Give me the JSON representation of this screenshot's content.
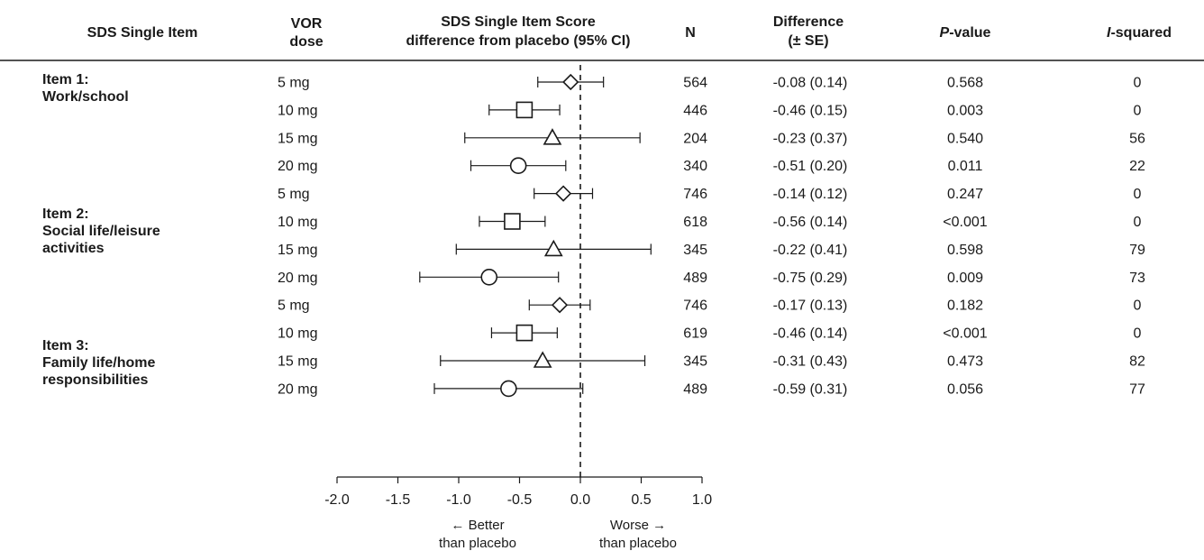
{
  "headers": {
    "item": "SDS Single Item",
    "dose_line1": "VOR",
    "dose_line2": "dose",
    "plot_line1": "SDS Single Item Score",
    "plot_line2": "difference from placebo (95% CI)",
    "n": "N",
    "diff_line1": "Difference",
    "diff_line2": "(± SE)",
    "p_italic": "P",
    "p_rest": "-value",
    "i_italic": "I",
    "i_rest": "-squared"
  },
  "groups": [
    {
      "line1": "Item 1:",
      "line2": "Work/school",
      "line3": ""
    },
    {
      "line1": "Item 2:",
      "line2": "Social life/leisure",
      "line3": "activities"
    },
    {
      "line1": "Item 3:",
      "line2": "Family life/home",
      "line3": "responsibilities"
    }
  ],
  "rows": [
    {
      "dose": "5 mg",
      "n": "564",
      "diff": "-0.08 (0.14)",
      "p": "0.568",
      "i2": "0"
    },
    {
      "dose": "10 mg",
      "n": "446",
      "diff": "-0.46 (0.15)",
      "p": "0.003",
      "i2": "0"
    },
    {
      "dose": "15 mg",
      "n": "204",
      "diff": "-0.23 (0.37)",
      "p": "0.540",
      "i2": "56"
    },
    {
      "dose": "20 mg",
      "n": "340",
      "diff": "-0.51 (0.20)",
      "p": "0.011",
      "i2": "22"
    },
    {
      "dose": "5 mg",
      "n": "746",
      "diff": "-0.14 (0.12)",
      "p": "0.247",
      "i2": "0"
    },
    {
      "dose": "10 mg",
      "n": "618",
      "diff": "-0.56 (0.14)",
      "p": "<0.001",
      "i2": "0"
    },
    {
      "dose": "15 mg",
      "n": "345",
      "diff": "-0.22 (0.41)",
      "p": "0.598",
      "i2": "79"
    },
    {
      "dose": "20 mg",
      "n": "489",
      "diff": "-0.75 (0.29)",
      "p": "0.009",
      "i2": "73"
    },
    {
      "dose": "5 mg",
      "n": "746",
      "diff": "-0.17 (0.13)",
      "p": "0.182",
      "i2": "0"
    },
    {
      "dose": "10 mg",
      "n": "619",
      "diff": "-0.46 (0.14)",
      "p": "<0.001",
      "i2": "0"
    },
    {
      "dose": "15 mg",
      "n": "345",
      "diff": "-0.31 (0.43)",
      "p": "0.473",
      "i2": "82"
    },
    {
      "dose": "20 mg",
      "n": "489",
      "diff": "-0.59 (0.31)",
      "p": "0.056",
      "i2": "77"
    }
  ],
  "direction": {
    "left_line1": "← Better",
    "left_line2": "than placebo",
    "right_line1": "Worse →",
    "right_line2": "than placebo"
  },
  "chart_data": {
    "type": "forest",
    "xlim": [
      -2.0,
      1.0
    ],
    "ticks": [
      -2.0,
      -1.5,
      -1.0,
      -0.5,
      0.0,
      0.5,
      1.0
    ],
    "tick_labels": [
      "-2.0",
      "-1.5",
      "-1.0",
      "-0.5",
      "0.0",
      "0.5",
      "1.0"
    ],
    "reference_line": 0.0,
    "reference_line_style": "dashed",
    "marker_by_dose": {
      "5 mg": "diamond",
      "10 mg": "square",
      "15 mg": "triangle",
      "20 mg": "circle"
    },
    "points": [
      {
        "estimate": -0.08,
        "lower": -0.35,
        "upper": 0.19
      },
      {
        "estimate": -0.46,
        "lower": -0.75,
        "upper": -0.17
      },
      {
        "estimate": -0.23,
        "lower": -0.95,
        "upper": 0.49
      },
      {
        "estimate": -0.51,
        "lower": -0.9,
        "upper": -0.12
      },
      {
        "estimate": -0.14,
        "lower": -0.38,
        "upper": 0.1
      },
      {
        "estimate": -0.56,
        "lower": -0.83,
        "upper": -0.29
      },
      {
        "estimate": -0.22,
        "lower": -1.02,
        "upper": 0.58
      },
      {
        "estimate": -0.75,
        "lower": -1.32,
        "upper": -0.18
      },
      {
        "estimate": -0.17,
        "lower": -0.42,
        "upper": 0.08
      },
      {
        "estimate": -0.46,
        "lower": -0.73,
        "upper": -0.19
      },
      {
        "estimate": -0.31,
        "lower": -1.15,
        "upper": 0.53
      },
      {
        "estimate": -0.59,
        "lower": -1.2,
        "upper": 0.02
      }
    ]
  }
}
